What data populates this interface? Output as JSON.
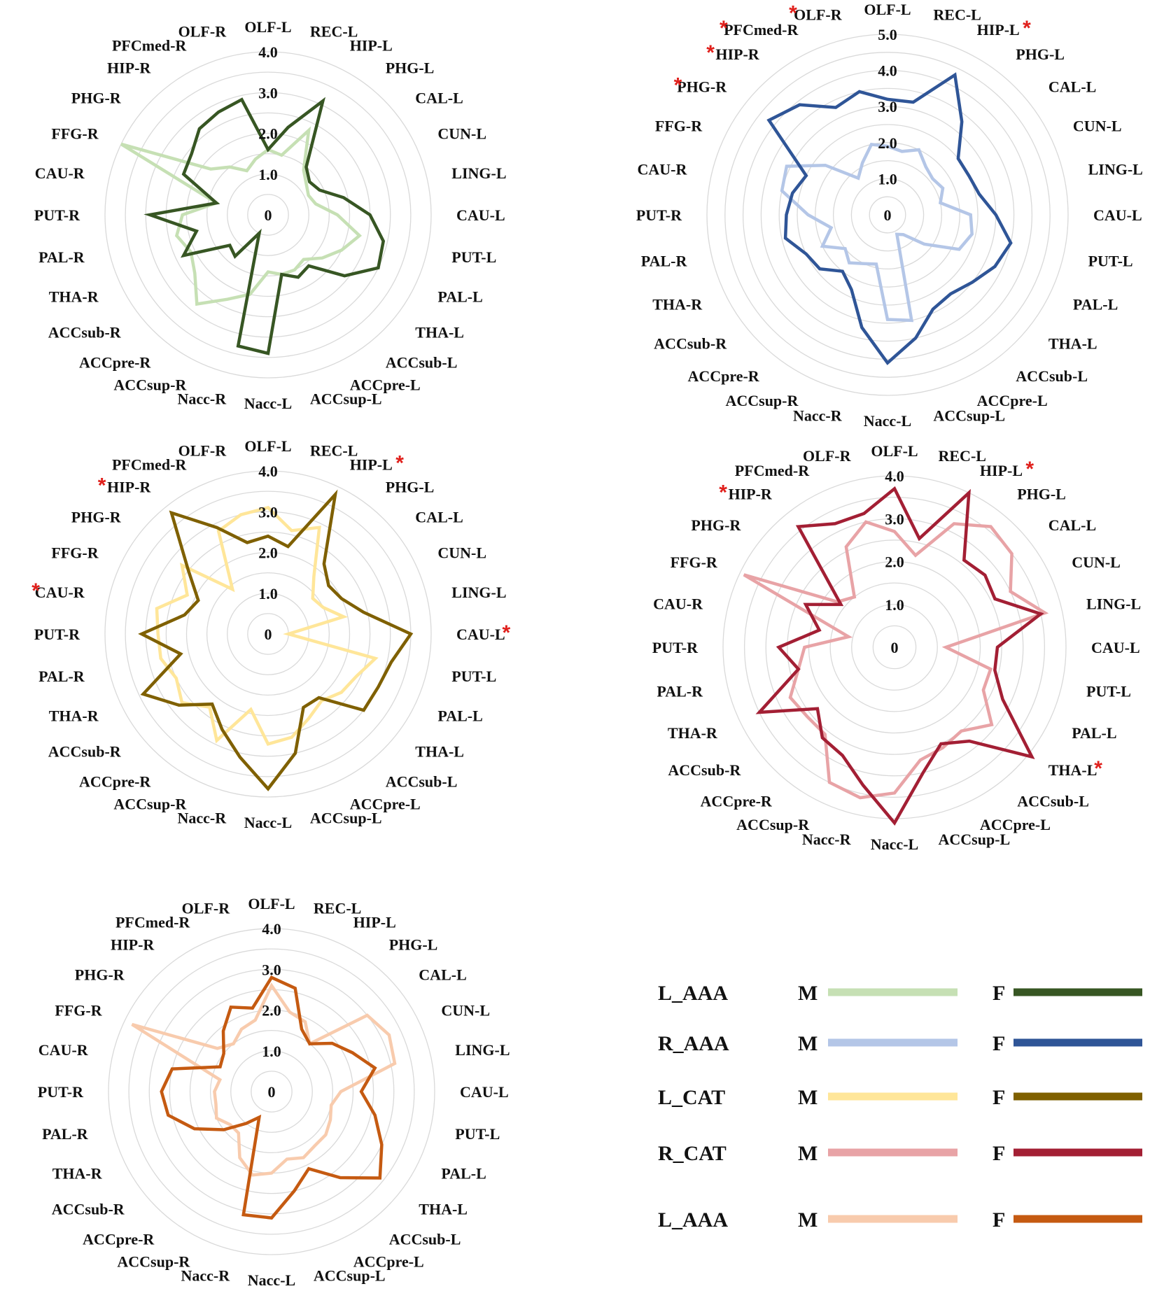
{
  "figure": {
    "axes_labels": [
      "OLF-L",
      "REC-L",
      "HIP-L",
      "PHG-L",
      "CAL-L",
      "CUN-L",
      "LING-L",
      "CAU-L",
      "PUT-L",
      "PAL-L",
      "THA-L",
      "ACCsub-L",
      "ACCpre-L",
      "ACCsup-L",
      "Nacc-L",
      "Nacc-R",
      "ACCsup-R",
      "ACCpre-R",
      "ACCsub-R",
      "THA-R",
      "PAL-R",
      "PUT-R",
      "CAU-R",
      "FFG-R",
      "PHG-R",
      "HIP-R",
      "PFCmed-R",
      "OLF-R"
    ],
    "legend": {
      "rows": [
        {
          "group": "L_AAA",
          "m_label": "M",
          "f_label": "F",
          "m_color": "#c6e0b4",
          "f_color": "#375623"
        },
        {
          "group": "R_AAA",
          "m_label": "M",
          "f_label": "F",
          "m_color": "#b4c6e7",
          "f_color": "#2f5597"
        },
        {
          "group": "L_CAT",
          "m_label": "M",
          "f_label": "F",
          "m_color": "#ffe699",
          "f_color": "#7f6000"
        },
        {
          "group": "R_CAT",
          "m_label": "M",
          "f_label": "F",
          "m_color": "#e8a3a6",
          "f_color": "#a31f34"
        },
        {
          "group": "L_AAA",
          "m_label": "M",
          "f_label": "F",
          "m_color": "#f8cbad",
          "f_color": "#c55a11"
        }
      ]
    }
  },
  "chart_data": [
    {
      "type": "radar",
      "panel": "L_AAA",
      "rmax": 4.0,
      "tick_labels": [
        "0",
        "1.0",
        "2.0",
        "3.0",
        "4.0"
      ],
      "tick_values": [
        0,
        1,
        2,
        3,
        4
      ],
      "starred": [],
      "series": [
        {
          "name": "M",
          "color": "#c6e0b4",
          "values": [
            1.6,
            1.5,
            2.3,
            1.4,
            1.2,
            1.1,
            1.2,
            1.7,
            2.3,
            2.0,
            1.7,
            1.4,
            1.5,
            1.5,
            1.4,
            2.0,
            2.3,
            2.8,
            2.3,
            2.1,
            2.3,
            2.1,
            1.3,
            4.0,
            1.8,
            1.5,
            1.2,
            1.4
          ]
        },
        {
          "name": "F",
          "color": "#375623",
          "values": [
            1.6,
            2.2,
            3.1,
            1.5,
            1.3,
            1.4,
            1.9,
            2.5,
            2.9,
            3.0,
            2.4,
            1.6,
            1.7,
            1.5,
            3.4,
            3.3,
            0.5,
            1.3,
            1.2,
            2.3,
            1.8,
            2.9,
            1.3,
            2.3,
            2.4,
            2.7,
            2.8,
            2.9
          ]
        }
      ]
    },
    {
      "type": "radar",
      "panel": "R_AAA",
      "rmax": 5.0,
      "tick_labels": [
        "0",
        "1.0",
        "2.0",
        "3.0",
        "4.0",
        "5.0"
      ],
      "tick_values": [
        0,
        1,
        2,
        3,
        4,
        5
      ],
      "starred": [
        "OLF-R",
        "HIP-L",
        "PFCmed-R",
        "HIP-R",
        "PHG-R"
      ],
      "series": [
        {
          "name": "M",
          "color": "#b4c6e7",
          "values": [
            1.9,
            1.8,
            2.0,
            1.7,
            1.6,
            1.7,
            1.5,
            2.3,
            2.4,
            2.2,
            1.3,
            0.7,
            0.6,
            3.0,
            2.9,
            1.4,
            1.5,
            1.7,
            1.5,
            2.0,
            1.6,
            2.2,
            3.0,
            3.1,
            2.2,
            1.3,
            1.6,
            2.0
          ]
        },
        {
          "name": "F",
          "color": "#2f5597",
          "values": [
            3.2,
            3.2,
            4.3,
            3.3,
            2.5,
            2.5,
            2.6,
            3.0,
            3.5,
            3.3,
            3.0,
            2.8,
            2.9,
            3.5,
            4.1,
            3.2,
            2.3,
            2.0,
            2.4,
            2.5,
            2.9,
            2.8,
            2.7,
            2.5,
            4.2,
            3.9,
            3.3,
            3.5
          ]
        }
      ]
    },
    {
      "type": "radar",
      "panel": "L_CAT",
      "rmax": 4.0,
      "tick_labels": [
        "0",
        "1.0",
        "2.0",
        "3.0",
        "4.0"
      ],
      "tick_values": [
        0,
        1,
        2,
        3,
        4
      ],
      "starred": [
        "HIP-L",
        "CAU-L",
        "HIP-R",
        "CAU-R"
      ],
      "series": [
        {
          "name": "M",
          "color": "#ffe699",
          "values": [
            3.1,
            2.6,
            2.9,
            1.8,
            1.4,
            1.5,
            1.9,
            0.5,
            2.7,
            2.4,
            2.3,
            2.1,
            2.3,
            2.6,
            2.7,
            1.9,
            2.9,
            2.3,
            2.7,
            2.5,
            2.7,
            2.7,
            2.8,
            2.2,
            2.7,
            1.4,
            2.8,
            3.0
          ]
        },
        {
          "name": "F",
          "color": "#7f6000",
          "values": [
            2.4,
            2.2,
            3.8,
            2.2,
            1.9,
            2.0,
            2.4,
            3.5,
            3.1,
            3.0,
            3.0,
            2.0,
            2.0,
            3.0,
            3.8,
            3.1,
            2.6,
            2.2,
            2.8,
            3.4,
            2.2,
            3.1,
            2.1,
            1.9,
            2.5,
            3.8,
            2.9,
            2.3
          ]
        }
      ]
    },
    {
      "type": "radar",
      "panel": "R_CAT",
      "rmax": 4.0,
      "tick_labels": [
        "0",
        "1.0",
        "2.0",
        "3.0",
        "4.0"
      ],
      "tick_values": [
        0,
        1,
        2,
        3,
        4
      ],
      "starred": [
        "HIP-L",
        "HIP-R",
        "THA-L"
      ],
      "series": [
        {
          "name": "M",
          "color": "#e8a3a6",
          "values": [
            2.7,
            2.2,
            3.2,
            3.6,
            3.5,
            3.0,
            3.6,
            1.2,
            2.3,
            2.3,
            2.9,
            2.5,
            2.6,
            2.7,
            3.4,
            3.6,
            3.5,
            2.6,
            2.6,
            2.7,
            2.3,
            2.1,
            1.1,
            3.9,
            1.7,
            1.5,
            2.6,
            3.0
          ]
        },
        {
          "name": "F",
          "color": "#a31f34",
          "values": [
            3.7,
            2.6,
            4.0,
            2.6,
            2.7,
            2.6,
            3.5,
            2.4,
            2.4,
            2.8,
            4.1,
            2.8,
            2.5,
            3.0,
            4.1,
            3.3,
            2.8,
            2.7,
            2.3,
            3.5,
            2.3,
            2.7,
            1.8,
            2.3,
            1.6,
            3.6,
            3.2,
            3.2
          ]
        }
      ]
    },
    {
      "type": "radar",
      "panel": "L_AAA",
      "rmax": 4.0,
      "tick_labels": [
        "0",
        "1.0",
        "2.0",
        "3.0",
        "4.0"
      ],
      "tick_values": [
        0,
        1,
        2,
        3,
        4
      ],
      "starred": [],
      "series": [
        {
          "name": "M",
          "color": "#f8cbad",
          "values": [
            2.6,
            2.0,
            1.9,
            1.5,
            3.0,
            3.2,
            3.1,
            1.7,
            1.5,
            1.6,
            1.7,
            1.7,
            1.8,
            1.7,
            2.0,
            2.1,
            1.8,
            1.3,
            1.3,
            1.5,
            1.4,
            1.4,
            1.3,
            3.8,
            1.7,
            1.5,
            1.7,
            1.8
          ]
        },
        {
          "name": "F",
          "color": "#c55a11",
          "values": [
            2.8,
            2.6,
            1.7,
            1.5,
            1.9,
            2.2,
            2.6,
            2.2,
            2.6,
            3.0,
            3.4,
            2.7,
            2.1,
            2.5,
            3.1,
            3.1,
            0.7,
            1.0,
            1.5,
            2.1,
            2.6,
            2.7,
            2.5,
            1.4,
            1.5,
            1.9,
            2.3,
            2.1
          ]
        }
      ]
    }
  ]
}
